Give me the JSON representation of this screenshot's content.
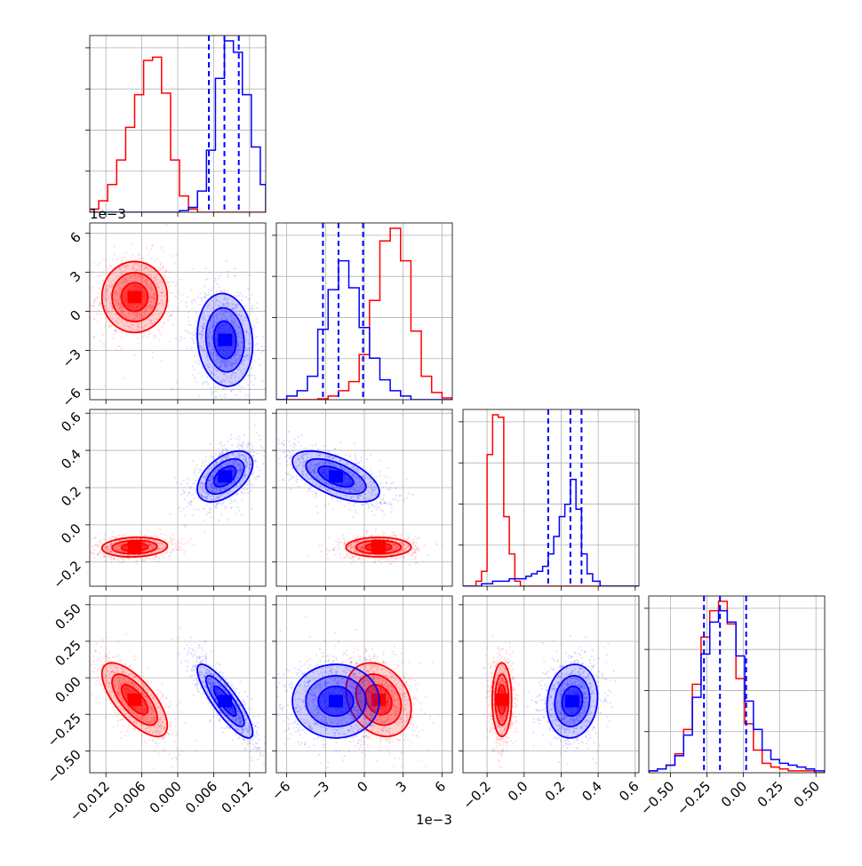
{
  "chart_data": {
    "type": "corner",
    "grid": true,
    "colors": {
      "series_a": "#ff0000",
      "series_b": "#0000ff"
    },
    "series": [
      {
        "color": "#ff0000",
        "means": [
          -0.0072,
          0.0011,
          -0.12,
          -0.15
        ]
      },
      {
        "color": "#0000ff",
        "means": [
          0.0079,
          -0.0022,
          0.26,
          -0.16
        ]
      }
    ],
    "quantile_lines": {
      "color": "#0000ff",
      "p0": [
        0.0052,
        0.0078,
        0.0102
      ],
      "p1": [
        -0.0032,
        -0.002,
        -0.0001
      ],
      "p2": [
        0.13,
        0.25,
        0.31
      ],
      "p3": [
        -0.27,
        -0.16,
        0.02
      ]
    },
    "axis_ranges": {
      "p0": [
        -0.0147,
        0.0147
      ],
      "p1": [
        -0.0068,
        0.0068
      ],
      "p2": [
        -0.33,
        0.62
      ],
      "p3": [
        -0.65,
        0.56
      ]
    },
    "ticks": {
      "p0": {
        "values": [
          -0.012,
          -0.006,
          0.0,
          0.006,
          0.012
        ],
        "labels": [
          "−0.012",
          "−0.006",
          "0.000",
          "0.006",
          "0.012"
        ]
      },
      "p1": {
        "values": [
          -0.006,
          -0.003,
          0.0,
          0.003,
          0.006
        ],
        "labels": [
          "−6",
          "−3",
          "0",
          "3",
          "6"
        ],
        "offset": "1e−3"
      },
      "p2": {
        "values": [
          -0.2,
          0.0,
          0.2,
          0.4,
          0.6
        ],
        "labels": [
          "−0.2",
          "0.0",
          "0.2",
          "0.4",
          "0.6"
        ]
      },
      "p3": {
        "values": [
          -0.5,
          -0.25,
          0.0,
          0.25,
          0.5
        ],
        "labels": [
          "−0.50",
          "−0.25",
          "0.00",
          "0.25",
          "0.50"
        ]
      }
    },
    "histograms": {
      "p0": {
        "bins": [
          -0.0147,
          -0.0132,
          -0.0117,
          -0.0102,
          -0.0087,
          -0.0072,
          -0.0057,
          -0.0042,
          -0.0027,
          -0.0012,
          0.0003,
          0.0018,
          0.0033,
          0.0048,
          0.0063,
          0.0078,
          0.0093,
          0.0108,
          0.0123,
          0.0138,
          0.0147
        ],
        "red": [
          0.02,
          0.07,
          0.17,
          0.32,
          0.52,
          0.72,
          0.93,
          0.95,
          0.73,
          0.32,
          0.1,
          0.02,
          0,
          0,
          0,
          0,
          0,
          0,
          0,
          0
        ],
        "blue": [
          0,
          0,
          0,
          0,
          0,
          0,
          0,
          0,
          0,
          0,
          0.01,
          0.03,
          0.13,
          0.38,
          0.82,
          1.05,
          0.98,
          0.72,
          0.4,
          0.17
        ]
      },
      "p1": {
        "bins": [
          -0.0068,
          -0.006,
          -0.0052,
          -0.0044,
          -0.0036,
          -0.0028,
          -0.002,
          -0.0012,
          -0.0004,
          0.0004,
          0.0012,
          0.002,
          0.0028,
          0.0036,
          0.0044,
          0.0052,
          0.006,
          0.0068
        ],
        "red": [
          0,
          0,
          0,
          0,
          0.005,
          0.02,
          0.05,
          0.1,
          0.25,
          0.55,
          0.88,
          0.95,
          0.77,
          0.38,
          0.13,
          0.04,
          0.01
        ],
        "blue": [
          0,
          0.02,
          0.05,
          0.13,
          0.39,
          0.61,
          0.77,
          0.62,
          0.4,
          0.23,
          0.11,
          0.05,
          0.02,
          0,
          0,
          0,
          0
        ]
      },
      "p2": {
        "bins": [
          -0.33,
          -0.26,
          -0.23,
          -0.2,
          -0.17,
          -0.14,
          -0.11,
          -0.08,
          -0.05,
          -0.02,
          0.01,
          0.04,
          0.07,
          0.1,
          0.13,
          0.16,
          0.19,
          0.22,
          0.25,
          0.28,
          0.31,
          0.34,
          0.37,
          0.41,
          0.62
        ],
        "red": [
          0,
          0.02,
          0.06,
          0.53,
          0.69,
          0.68,
          0.28,
          0.13,
          0.02,
          0,
          0,
          0,
          0,
          0,
          0,
          0,
          0,
          0,
          0,
          0,
          0,
          0,
          0,
          0
        ],
        "blue": [
          0,
          0,
          0.01,
          0.01,
          0.02,
          0.02,
          0.02,
          0.03,
          0.03,
          0.03,
          0.04,
          0.05,
          0.06,
          0.08,
          0.13,
          0.2,
          0.28,
          0.33,
          0.43,
          0.31,
          0.13,
          0.05,
          0.02,
          0
        ]
      },
      "p3": {
        "bins": [
          -0.65,
          -0.59,
          -0.53,
          -0.47,
          -0.41,
          -0.35,
          -0.29,
          -0.23,
          -0.17,
          -0.11,
          -0.05,
          0.01,
          0.07,
          0.13,
          0.19,
          0.25,
          0.31,
          0.37,
          0.43,
          0.49,
          0.56
        ],
        "red": [
          0.01,
          0.02,
          0.04,
          0.1,
          0.23,
          0.47,
          0.72,
          0.86,
          0.91,
          0.79,
          0.5,
          0.26,
          0.12,
          0.05,
          0.03,
          0.02,
          0.01,
          0.01,
          0.01,
          0.0
        ],
        "blue": [
          0.01,
          0.02,
          0.04,
          0.09,
          0.2,
          0.4,
          0.63,
          0.8,
          0.86,
          0.8,
          0.62,
          0.38,
          0.23,
          0.12,
          0.07,
          0.05,
          0.04,
          0.03,
          0.02,
          0.01
        ]
      }
    },
    "clusters": [
      {
        "x": 0,
        "y": 1,
        "color": "#ff0000",
        "cx": -0.0072,
        "cy": 0.0011,
        "sx": 0.0026,
        "sy": 0.0013,
        "rho": 0.0
      },
      {
        "x": 0,
        "y": 1,
        "color": "#0000ff",
        "cx": 0.0079,
        "cy": -0.0022,
        "sx": 0.0022,
        "sy": 0.0017,
        "rho": -0.1
      },
      {
        "x": 0,
        "y": 2,
        "color": "#ff0000",
        "cx": -0.0072,
        "cy": -0.12,
        "sx": 0.0026,
        "sy": 0.025,
        "rho": 0.1
      },
      {
        "x": 0,
        "y": 2,
        "color": "#0000ff",
        "cx": 0.0079,
        "cy": 0.26,
        "sx": 0.0022,
        "sy": 0.065,
        "rho": 0.5
      },
      {
        "x": 1,
        "y": 2,
        "color": "#ff0000",
        "cx": 0.0011,
        "cy": -0.12,
        "sx": 0.0012,
        "sy": 0.025,
        "rho": 0.0
      },
      {
        "x": 1,
        "y": 2,
        "color": "#0000ff",
        "cx": -0.0022,
        "cy": 0.26,
        "sx": 0.0016,
        "sy": 0.065,
        "rho": -0.6
      },
      {
        "x": 0,
        "y": 3,
        "color": "#ff0000",
        "cx": -0.0072,
        "cy": -0.15,
        "sx": 0.0026,
        "sy": 0.12,
        "rho": -0.7
      },
      {
        "x": 0,
        "y": 3,
        "color": "#0000ff",
        "cx": 0.0079,
        "cy": -0.16,
        "sx": 0.0022,
        "sy": 0.12,
        "rho": -0.85
      },
      {
        "x": 1,
        "y": 3,
        "color": "#ff0000",
        "cx": 0.0011,
        "cy": -0.15,
        "sx": 0.0012,
        "sy": 0.12,
        "rho": -0.25
      },
      {
        "x": 1,
        "y": 3,
        "color": "#0000ff",
        "cx": -0.0022,
        "cy": -0.16,
        "sx": 0.0016,
        "sy": 0.12,
        "rho": 0.0
      },
      {
        "x": 2,
        "y": 3,
        "color": "#ff0000",
        "cx": -0.12,
        "cy": -0.15,
        "sx": 0.025,
        "sy": 0.12,
        "rho": 0.0
      },
      {
        "x": 2,
        "y": 3,
        "color": "#0000ff",
        "cx": 0.26,
        "cy": -0.16,
        "sx": 0.065,
        "sy": 0.12,
        "rho": 0.1
      }
    ],
    "offset_labels": {
      "p0_y": "1e−3",
      "p1_x": "1e−3"
    }
  }
}
